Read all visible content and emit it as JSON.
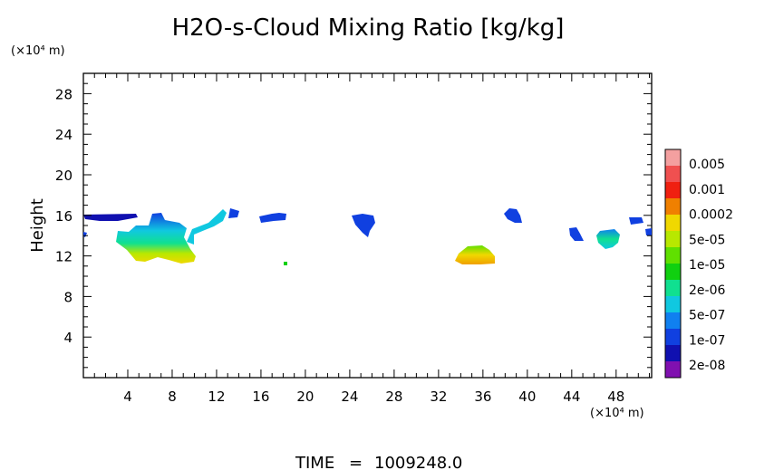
{
  "chart_data": {
    "type": "heatmap",
    "title": "H2O-s-Cloud Mixing Ratio [kg/kg]",
    "xlabel": "",
    "xunit": "(×10⁴ m)",
    "ylabel": "Height",
    "yunit": "(×10⁴ m)",
    "xlim": [
      0,
      51.2
    ],
    "ylim": [
      0,
      30
    ],
    "xticks": [
      "4",
      "8",
      "12",
      "16",
      "20",
      "24",
      "28",
      "32",
      "36",
      "40",
      "44",
      "48"
    ],
    "yticks": [
      "4",
      "8",
      "12",
      "16",
      "20",
      "24",
      "28"
    ],
    "colorbar": {
      "labels": [
        "0.005",
        "0.001",
        "0.0002",
        "5e-05",
        "1e-05",
        "2e-06",
        "5e-07",
        "1e-07",
        "2e-08"
      ],
      "colors": [
        "#f4a0a0",
        "#f05050",
        "#f02010",
        "#f08000",
        "#f0d800",
        "#b8e800",
        "#60e000",
        "#10d010",
        "#10e090",
        "#10c8e0",
        "#1080f0",
        "#1040e0",
        "#1010b0",
        "#8010b0"
      ]
    },
    "clouds": [
      {
        "id": "c1",
        "x": [
          0,
          5
        ],
        "y": [
          15.4,
          16.2
        ],
        "level": "1e-07"
      },
      {
        "id": "c2",
        "x": [
          3.5,
          10
        ],
        "y": [
          11.2,
          16.0
        ],
        "level": "5e-05"
      },
      {
        "id": "c3",
        "x": [
          9,
          14
        ],
        "y": [
          13.2,
          16.5
        ],
        "level": "5e-07"
      },
      {
        "id": "c4",
        "x": [
          15.5,
          18.5
        ],
        "y": [
          15.3,
          16.2
        ],
        "level": "1e-07"
      },
      {
        "id": "c5",
        "x": [
          24.2,
          26
        ],
        "y": [
          13.8,
          16.0
        ],
        "level": "1e-07"
      },
      {
        "id": "c6",
        "x": [
          33,
          37
        ],
        "y": [
          11.5,
          13.0
        ],
        "level": "0.0002"
      },
      {
        "id": "c7",
        "x": [
          38,
          39.8
        ],
        "y": [
          15.2,
          16.8
        ],
        "level": "1e-07"
      },
      {
        "id": "c8",
        "x": [
          44,
          45.2
        ],
        "y": [
          13.5,
          14.8
        ],
        "level": "1e-07"
      },
      {
        "id": "c9",
        "x": [
          46,
          48
        ],
        "y": [
          12.7,
          14.6
        ],
        "level": "5e-07"
      },
      {
        "id": "c10",
        "x": [
          49,
          51.2
        ],
        "y": [
          14.0,
          15.8
        ],
        "level": "1e-07"
      }
    ]
  },
  "footer": {
    "time_label": "TIME",
    "time_sep": "=",
    "time_value": "1009248.0"
  }
}
